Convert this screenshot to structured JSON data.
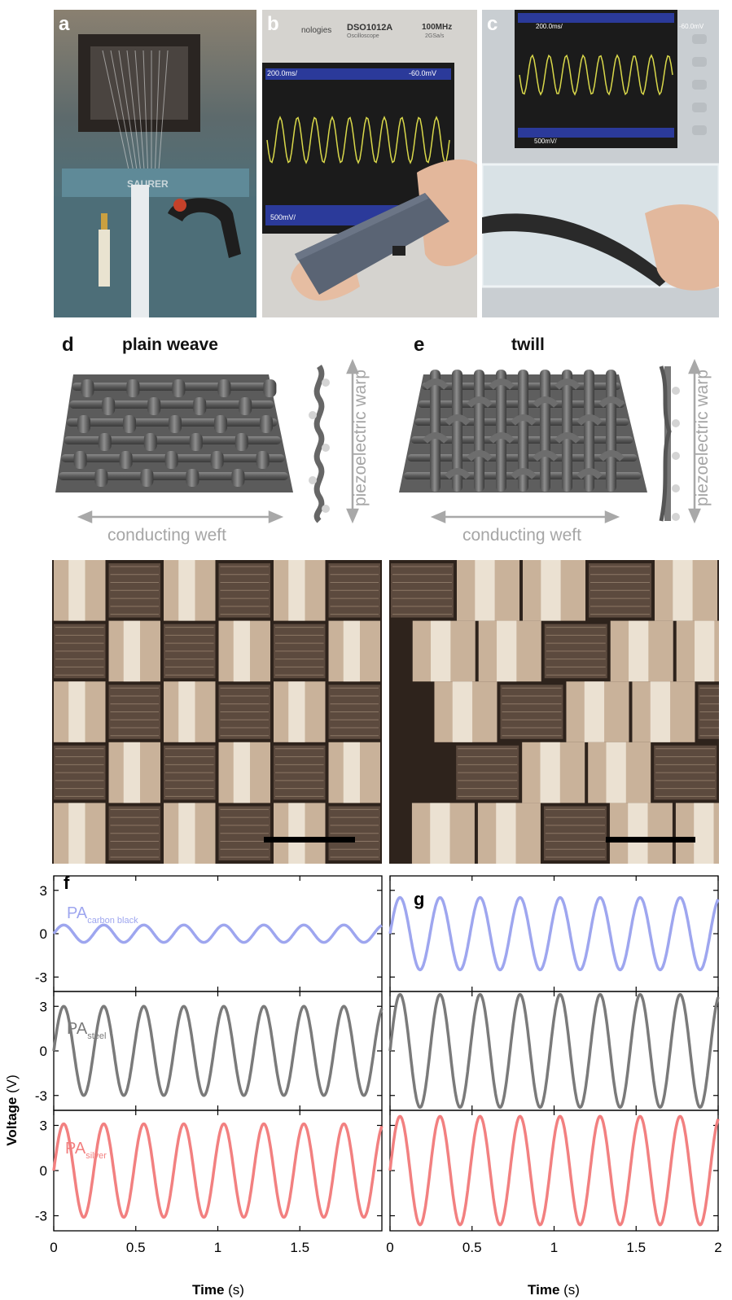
{
  "panels": {
    "a": {
      "label": "a"
    },
    "b": {
      "label": "b",
      "scope_brand": "nologies",
      "scope_model": "DSO1012A",
      "scope_sub": "Oscilloscope",
      "scope_bw": "100MHz",
      "scope_rate": "2GSa/s",
      "scope_time": "200.0ms/",
      "scope_trig": "-60.0mV",
      "scope_volt": "500mV/"
    },
    "c": {
      "label": "c",
      "scope_time": "200.0ms/",
      "scope_trig": "-60.0mV",
      "scope_volt": "500mV/"
    },
    "d": {
      "label": "d",
      "title": "plain weave",
      "weft_label": "conducting weft",
      "warp_label": "piezoelectric warp"
    },
    "e": {
      "label": "e",
      "title": "twill",
      "weft_label": "conducting weft",
      "warp_label": "piezoelectric warp"
    },
    "f": {
      "label": "f"
    },
    "g": {
      "label": "g"
    }
  },
  "plot": {
    "ylabel_main": "Voltage",
    "ylabel_unit": "(V)",
    "xlabel_main": "Time",
    "xlabel_unit": "(s)",
    "yticks": [
      "3",
      "0",
      "-3"
    ],
    "xticks_f": [
      "0",
      "0.5",
      "1",
      "1.5"
    ],
    "xticks_g": [
      "0",
      "0.5",
      "1",
      "1.5",
      "2"
    ],
    "series_labels": [
      {
        "main": "PA",
        "sub": "carbon black",
        "color": "#9ea6ef"
      },
      {
        "main": "PA",
        "sub": "steel",
        "color": "#7a7a7a"
      },
      {
        "main": "PA",
        "sub": "silver",
        "color": "#f28080"
      }
    ]
  },
  "chart_data": [
    {
      "type": "line",
      "panel": "f",
      "xlabel": "Time (s)",
      "ylabel": "Voltage (V)",
      "xlim": [
        0,
        2.0
      ],
      "series": [
        {
          "name": "PA carbon black",
          "color": "#9ea6ef",
          "amplitude": 0.6,
          "frequency": 4.1,
          "ylim": [
            -4,
            4
          ]
        },
        {
          "name": "PA steel",
          "color": "#7a7a7a",
          "amplitude": 3.0,
          "frequency": 4.1,
          "ylim": [
            -4,
            4
          ]
        },
        {
          "name": "PA silver",
          "color": "#f28080",
          "amplitude": 3.1,
          "frequency": 4.1,
          "ylim": [
            -4,
            4
          ]
        }
      ]
    },
    {
      "type": "line",
      "panel": "g",
      "xlabel": "Time (s)",
      "ylabel": "Voltage (V)",
      "xlim": [
        0,
        2.0
      ],
      "series": [
        {
          "name": "PA carbon black",
          "color": "#9ea6ef",
          "amplitude": 2.5,
          "frequency": 4.1,
          "ylim": [
            -4,
            4
          ]
        },
        {
          "name": "PA steel",
          "color": "#7a7a7a",
          "amplitude": 3.8,
          "frequency": 4.1,
          "ylim": [
            -4,
            4
          ]
        },
        {
          "name": "PA silver",
          "color": "#f28080",
          "amplitude": 3.6,
          "frequency": 4.1,
          "ylim": [
            -4,
            4
          ]
        }
      ]
    }
  ]
}
